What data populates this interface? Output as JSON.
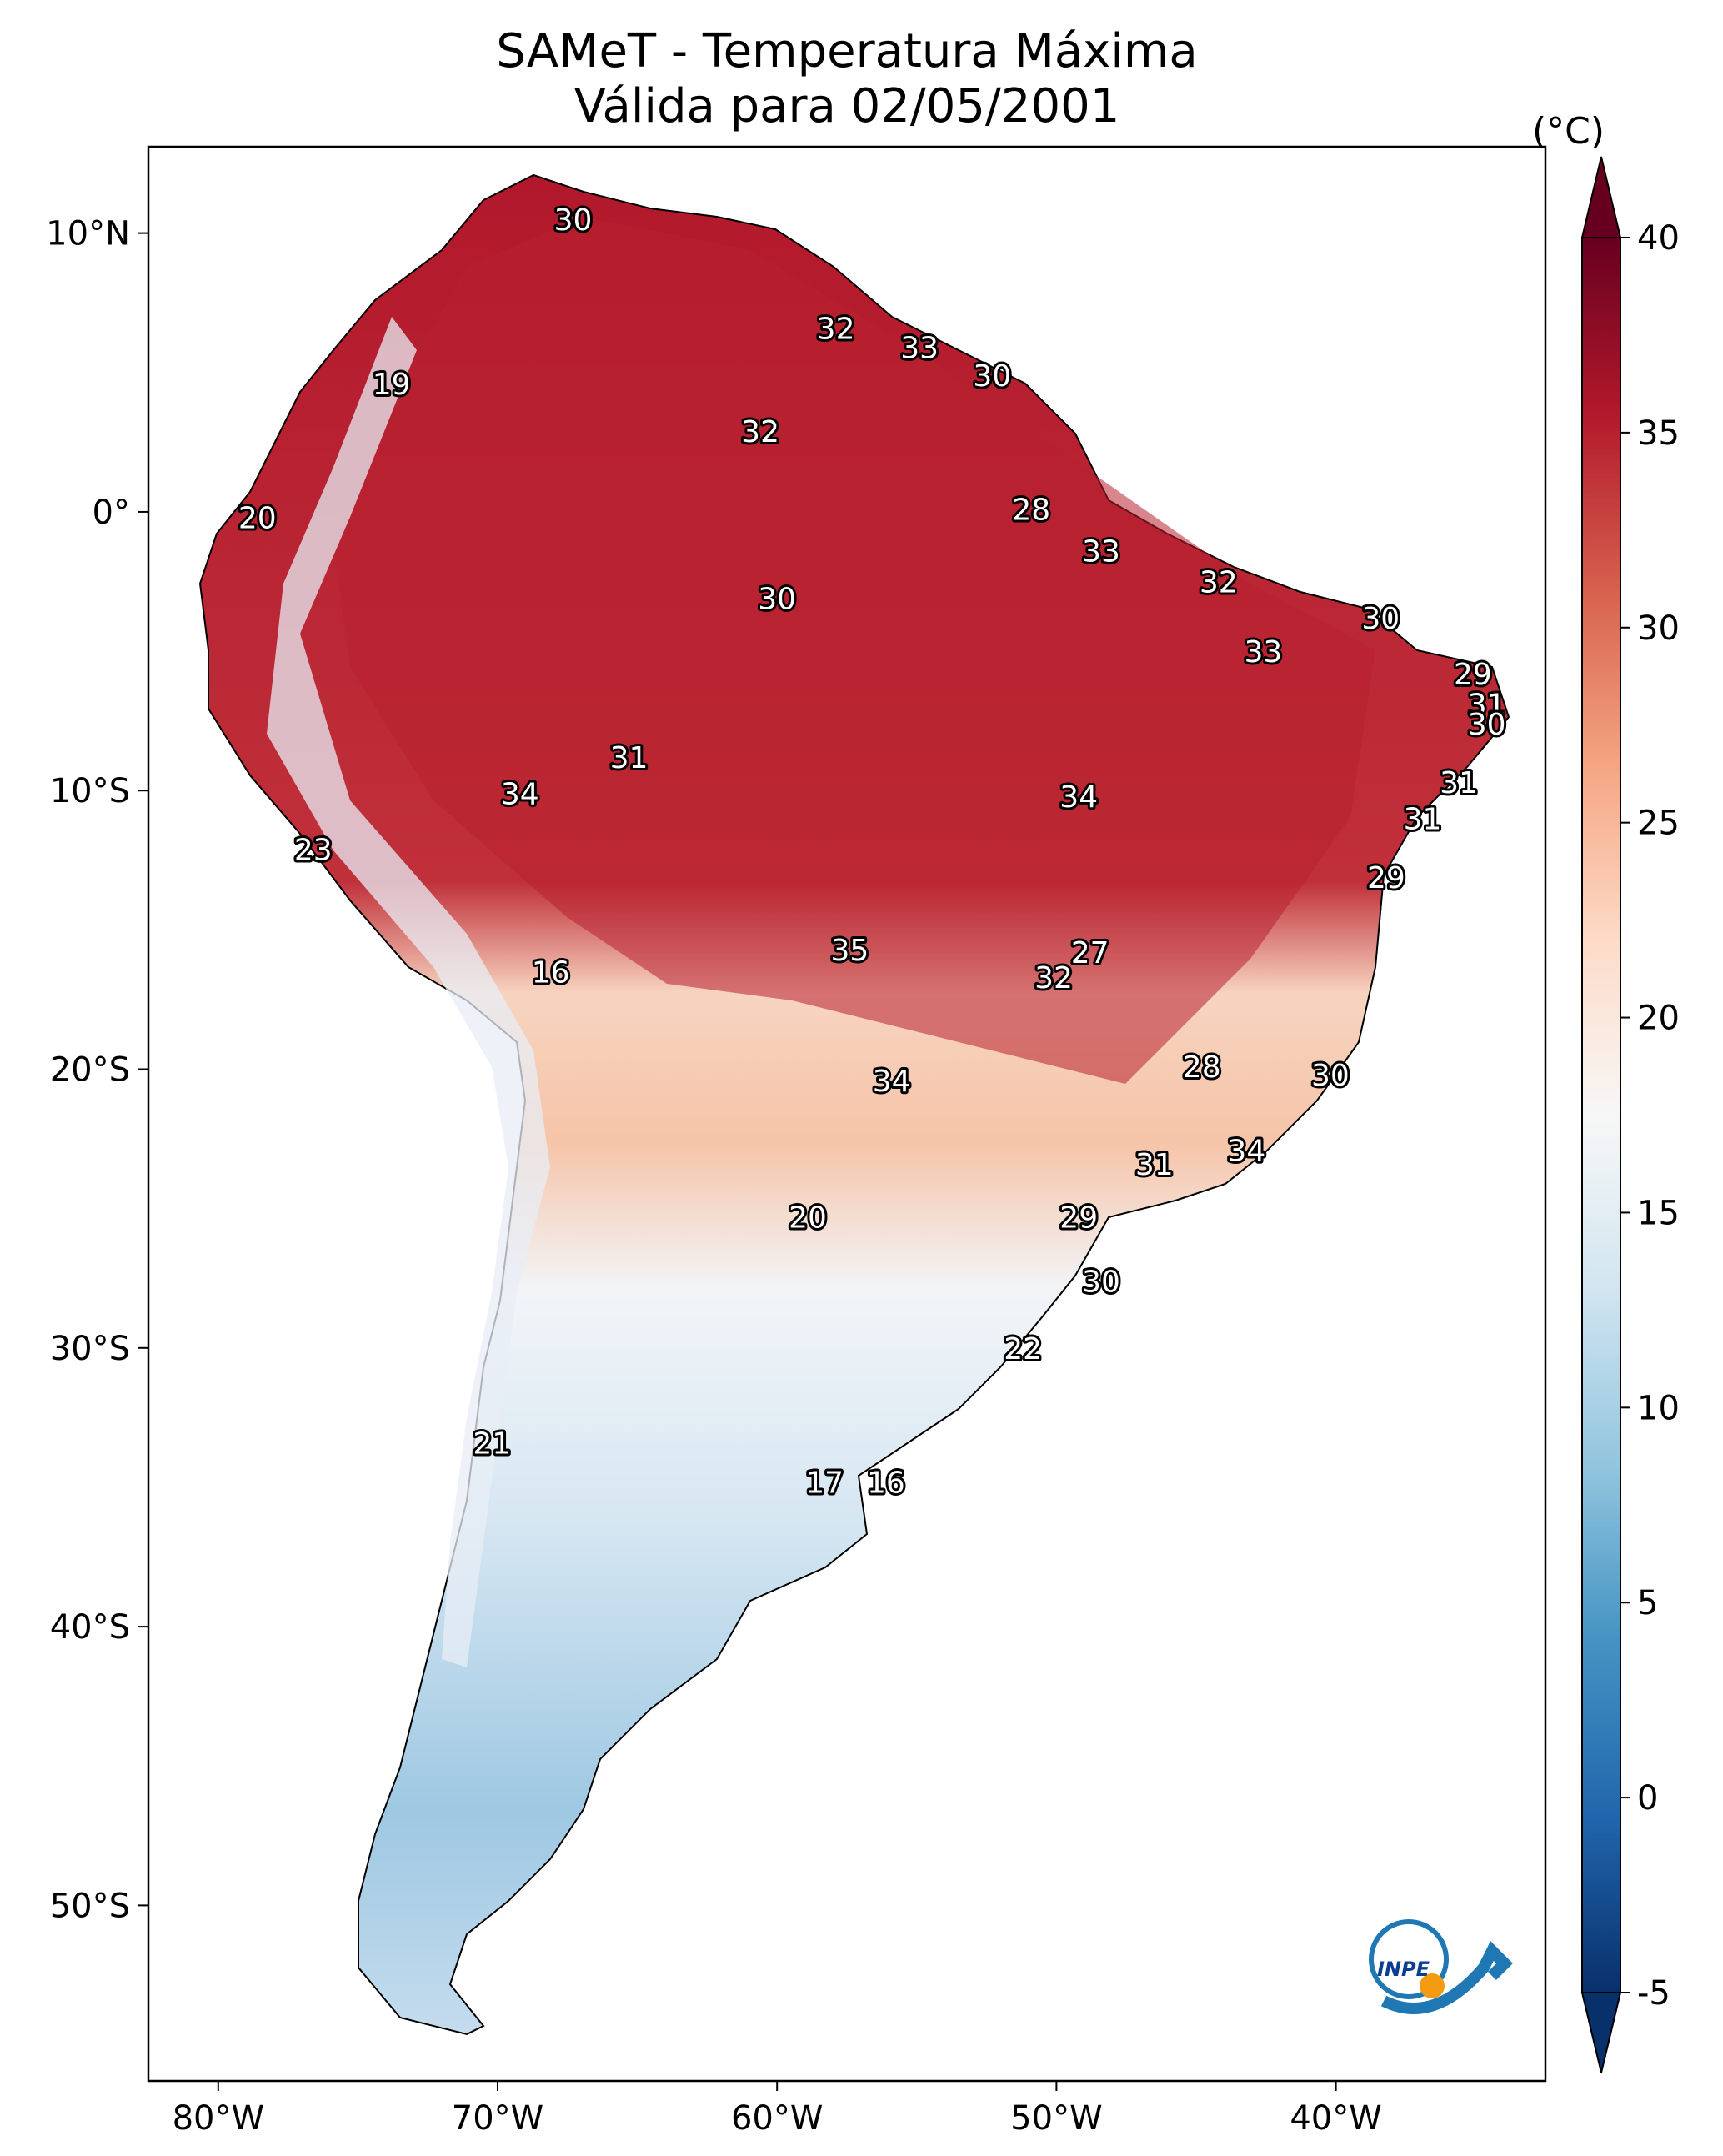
{
  "title": "SAMeT - Temperatura Máxima",
  "subtitle": "Válida para 02/05/2001",
  "colorbar": {
    "unit": "(°C)",
    "ticks": [
      "40",
      "35",
      "30",
      "25",
      "20",
      "15",
      "10",
      "5",
      "0",
      "-5"
    ],
    "range": [
      -5,
      40
    ],
    "colors": [
      "#08306b",
      "#2166ac",
      "#4393c3",
      "#92c5de",
      "#d1e5f0",
      "#f7f7f7",
      "#fddbc7",
      "#f4a582",
      "#d6604d",
      "#b2182b",
      "#67001f"
    ]
  },
  "axes": {
    "lon_labels": [
      "80°W",
      "70°W",
      "60°W",
      "50°W",
      "40°W"
    ],
    "lat_labels": [
      "10°N",
      "0°",
      "10°S",
      "20°S",
      "30°S",
      "40°S",
      "50°S"
    ]
  },
  "contour_labels": [
    {
      "text": "30",
      "lon": -67.3,
      "lat": 10.5
    },
    {
      "text": "32",
      "lon": -57.9,
      "lat": 6.6
    },
    {
      "text": "33",
      "lon": -54.9,
      "lat": 5.9
    },
    {
      "text": "30",
      "lon": -52.3,
      "lat": 4.9
    },
    {
      "text": "19",
      "lon": -73.8,
      "lat": 4.6
    },
    {
      "text": "32",
      "lon": -60.6,
      "lat": 2.9
    },
    {
      "text": "28",
      "lon": -50.9,
      "lat": 0.1
    },
    {
      "text": "20",
      "lon": -78.6,
      "lat": -0.2
    },
    {
      "text": "33",
      "lon": -48.4,
      "lat": -1.4
    },
    {
      "text": "32",
      "lon": -44.2,
      "lat": -2.5
    },
    {
      "text": "30",
      "lon": -60.0,
      "lat": -3.1
    },
    {
      "text": "30",
      "lon": -38.4,
      "lat": -3.8
    },
    {
      "text": "33",
      "lon": -42.6,
      "lat": -5.0
    },
    {
      "text": "29",
      "lon": -35.1,
      "lat": -5.8
    },
    {
      "text": "31",
      "lon": -34.6,
      "lat": -6.9
    },
    {
      "text": "30",
      "lon": -34.6,
      "lat": -7.6
    },
    {
      "text": "31",
      "lon": -65.3,
      "lat": -8.8
    },
    {
      "text": "31",
      "lon": -35.6,
      "lat": -9.7
    },
    {
      "text": "34",
      "lon": -69.2,
      "lat": -10.1
    },
    {
      "text": "34",
      "lon": -49.2,
      "lat": -10.2
    },
    {
      "text": "31",
      "lon": -36.9,
      "lat": -11.0
    },
    {
      "text": "23",
      "lon": -76.6,
      "lat": -12.1
    },
    {
      "text": "29",
      "lon": -38.2,
      "lat": -13.1
    },
    {
      "text": "35",
      "lon": -57.4,
      "lat": -15.7
    },
    {
      "text": "27",
      "lon": -48.8,
      "lat": -15.8
    },
    {
      "text": "32",
      "lon": -50.1,
      "lat": -16.7
    },
    {
      "text": "16",
      "lon": -68.1,
      "lat": -16.5
    },
    {
      "text": "28",
      "lon": -44.8,
      "lat": -19.9
    },
    {
      "text": "30",
      "lon": -40.2,
      "lat": -20.2
    },
    {
      "text": "34",
      "lon": -55.9,
      "lat": -20.4
    },
    {
      "text": "34",
      "lon": -43.2,
      "lat": -22.9
    },
    {
      "text": "31",
      "lon": -46.5,
      "lat": -23.4
    },
    {
      "text": "20",
      "lon": -58.9,
      "lat": -25.3
    },
    {
      "text": "29",
      "lon": -49.2,
      "lat": -25.3
    },
    {
      "text": "30",
      "lon": -48.4,
      "lat": -27.6
    },
    {
      "text": "22",
      "lon": -51.2,
      "lat": -30.0
    },
    {
      "text": "21",
      "lon": -70.2,
      "lat": -33.4
    },
    {
      "text": "17",
      "lon": -58.3,
      "lat": -34.8
    },
    {
      "text": "16",
      "lon": -56.1,
      "lat": -34.8
    }
  ],
  "logo": {
    "text": "INPE"
  }
}
